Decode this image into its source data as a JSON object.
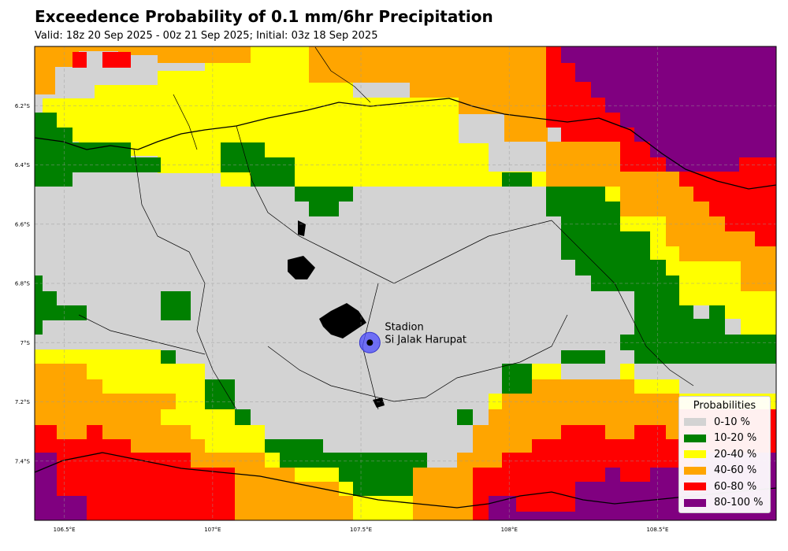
{
  "title": "Exceedence Probability of 0.1 mm/6hr Precipitation",
  "subtitle": "Valid: 18z 20 Sep 2025 - 00z 21 Sep 2025; Initial: 03z 18 Sep 2025",
  "map": {
    "lon_range": [
      106.4,
      108.9
    ],
    "lat_range": [
      -7.6,
      -6.0
    ],
    "x_ticks": [
      {
        "value": 106.5,
        "label": "106.5°E"
      },
      {
        "value": 107.0,
        "label": "107°E"
      },
      {
        "value": 107.5,
        "label": "107.5°E"
      },
      {
        "value": 108.0,
        "label": "108°E"
      },
      {
        "value": 108.5,
        "label": "108.5°E"
      }
    ],
    "y_ticks": [
      {
        "value": -6.2,
        "label": "6.2°S"
      },
      {
        "value": -6.4,
        "label": "6.4°S"
      },
      {
        "value": -6.6,
        "label": "6.6°S"
      },
      {
        "value": -6.8,
        "label": "6.8°S"
      },
      {
        "value": -7.0,
        "label": "7°S"
      },
      {
        "value": -7.2,
        "label": "7.2°S"
      },
      {
        "value": -7.4,
        "label": "7.4°S"
      }
    ],
    "gridlines": true
  },
  "station": {
    "name_line1": "Stadion",
    "name_line2": "Si Jalak Harupat",
    "lon": 107.53,
    "lat": -7.0
  },
  "legend": {
    "title": "Probabilities",
    "items": [
      {
        "label": "0-10 %",
        "color": "#d3d3d3"
      },
      {
        "label": "10-20 %",
        "color": "#008000"
      },
      {
        "label": "20-40 %",
        "color": "#ffff00"
      },
      {
        "label": "40-60 %",
        "color": "#ffa500"
      },
      {
        "label": "60-80 %",
        "color": "#ff0000"
      },
      {
        "label": "80-100 %",
        "color": "#800080"
      }
    ]
  }
}
